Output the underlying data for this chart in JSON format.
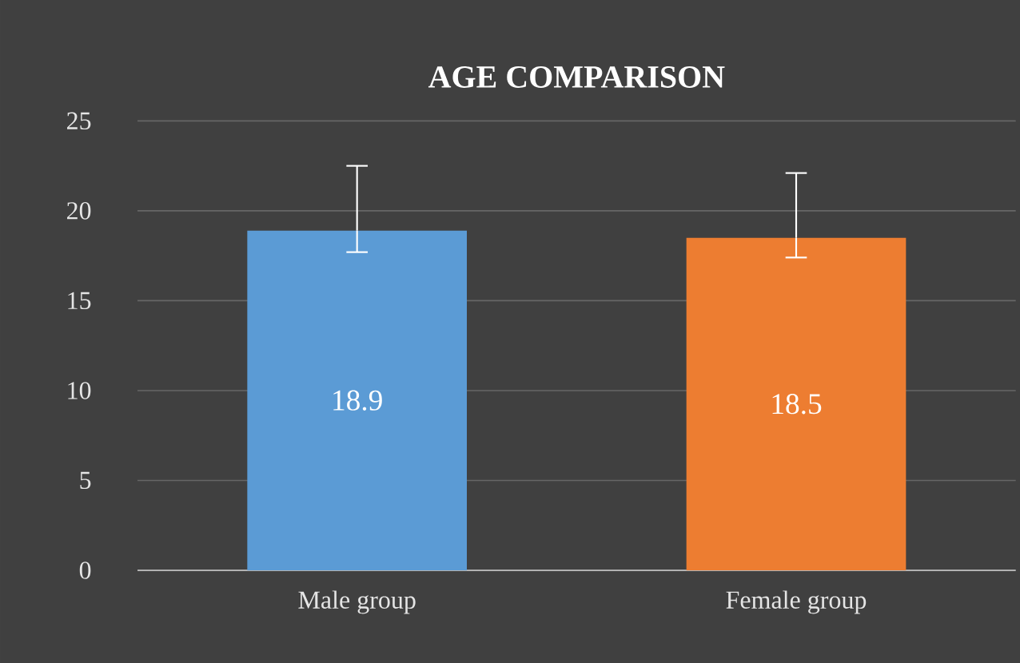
{
  "chart_data": {
    "type": "bar",
    "title": "AGE COMPARISON",
    "categories": [
      "Male group",
      "Female group"
    ],
    "values": [
      18.9,
      18.5
    ],
    "colors": [
      "#5b9bd5",
      "#ed7d31"
    ],
    "errors": [
      [
        17.7,
        22.5
      ],
      [
        17.4,
        22.1
      ]
    ],
    "data_labels": true,
    "ylim": [
      0,
      25
    ],
    "yticks": [
      0,
      5,
      10,
      15,
      20,
      25
    ],
    "grid": "y"
  }
}
